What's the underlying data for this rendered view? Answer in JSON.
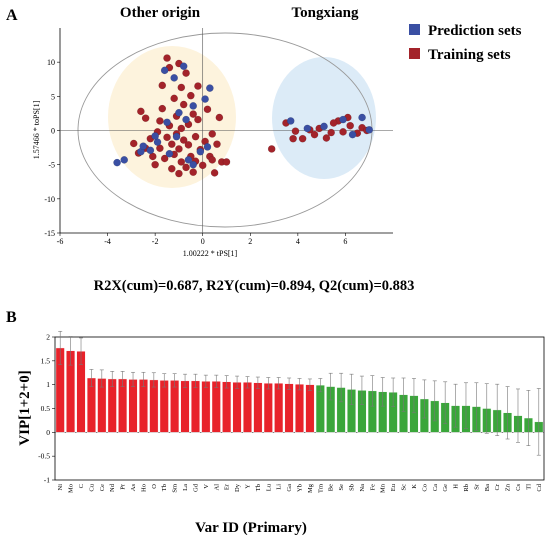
{
  "panels": {
    "a_letter": "A",
    "b_letter": "B"
  },
  "colors": {
    "prediction": "#3a4fa3",
    "training": "#a3232a",
    "vip_high": "#e8222a",
    "vip_low": "#3aa63a",
    "other_ellipse": "#fdf3dd",
    "tongxiang_ellipse": "#dcebf7"
  },
  "chart_data": [
    {
      "type": "scatter",
      "xlabel": "1.00222 * tPS[1]",
      "ylabel": "1.57466 * toPS[1]",
      "xlim": [
        -6,
        8
      ],
      "ylim": [
        -15,
        15
      ],
      "xticks": [
        -6,
        -4,
        -2,
        0,
        2,
        4,
        6
      ],
      "yticks": [
        -15,
        -10,
        -5,
        0,
        5,
        10
      ],
      "group_labels": [
        "Other origin",
        "Tongxiang"
      ],
      "stats": "R2X(cum)=0.687, R2Y(cum)=0.894, Q2(cum)=0.883",
      "legend_position": "top-right",
      "series": [
        {
          "name": "Prediction sets",
          "points": [
            [
              -3.6,
              -4.7
            ],
            [
              -3.3,
              -4.3
            ],
            [
              -2.6,
              -3.1
            ],
            [
              -2.5,
              -2.3
            ],
            [
              -2.2,
              -2.9
            ],
            [
              -1.9,
              -1.7
            ],
            [
              -1.4,
              -3.4
            ],
            [
              -1.1,
              -0.9
            ],
            [
              -0.7,
              1.6
            ],
            [
              -0.4,
              3.6
            ],
            [
              0.1,
              4.6
            ],
            [
              0.3,
              6.2
            ],
            [
              -1.2,
              7.7
            ],
            [
              -1.6,
              8.8
            ],
            [
              -0.8,
              9.4
            ],
            [
              -0.4,
              -5.0
            ],
            [
              -0.1,
              -3.1
            ],
            [
              0.2,
              -2.4
            ],
            [
              -0.6,
              -4.3
            ],
            [
              -1.0,
              2.6
            ],
            [
              3.7,
              1.4
            ],
            [
              4.4,
              0.3
            ],
            [
              5.1,
              0.6
            ],
            [
              5.9,
              1.6
            ],
            [
              6.3,
              -0.6
            ],
            [
              6.7,
              1.9
            ],
            [
              7.0,
              0.1
            ],
            [
              -2.0,
              -0.8
            ],
            [
              -1.5,
              1.2
            ]
          ]
        },
        {
          "name": "Training sets",
          "points": [
            [
              -2.9,
              -1.9
            ],
            [
              -2.7,
              -3.3
            ],
            [
              -2.4,
              -2.6
            ],
            [
              -2.2,
              -1.2
            ],
            [
              -2.1,
              -3.8
            ],
            [
              -2.0,
              -5.0
            ],
            [
              -1.9,
              -0.2
            ],
            [
              -1.8,
              1.4
            ],
            [
              -1.8,
              -2.6
            ],
            [
              -1.7,
              3.2
            ],
            [
              -1.7,
              6.6
            ],
            [
              -1.6,
              -4.1
            ],
            [
              -1.5,
              -1.0
            ],
            [
              -1.5,
              10.6
            ],
            [
              -1.4,
              9.2
            ],
            [
              -1.4,
              0.7
            ],
            [
              -1.3,
              -5.6
            ],
            [
              -1.3,
              -2.0
            ],
            [
              -1.2,
              4.7
            ],
            [
              -1.2,
              -3.5
            ],
            [
              -1.1,
              2.1
            ],
            [
              -1.1,
              -0.5
            ],
            [
              -1.0,
              -6.3
            ],
            [
              -1.0,
              -2.7
            ],
            [
              -0.9,
              6.3
            ],
            [
              -0.9,
              0.3
            ],
            [
              -0.9,
              -4.6
            ],
            [
              -0.8,
              3.8
            ],
            [
              -0.8,
              -1.4
            ],
            [
              -0.7,
              8.4
            ],
            [
              -0.7,
              -5.4
            ],
            [
              -0.6,
              -2.1
            ],
            [
              -0.6,
              0.9
            ],
            [
              -0.5,
              5.1
            ],
            [
              -0.5,
              -3.8
            ],
            [
              -0.4,
              2.4
            ],
            [
              -0.4,
              -6.1
            ],
            [
              -0.3,
              -0.9
            ],
            [
              -0.3,
              -4.5
            ],
            [
              -0.2,
              6.5
            ],
            [
              -0.2,
              1.6
            ],
            [
              -0.1,
              -2.8
            ],
            [
              0.0,
              -5.1
            ],
            [
              0.1,
              -1.6
            ],
            [
              0.2,
              3.1
            ],
            [
              0.3,
              -3.8
            ],
            [
              0.4,
              -0.5
            ],
            [
              0.5,
              -6.2
            ],
            [
              0.6,
              -2.0
            ],
            [
              0.7,
              1.9
            ],
            [
              0.8,
              -4.6
            ],
            [
              1.0,
              -4.6
            ],
            [
              0.4,
              -4.3
            ],
            [
              -1.0,
              9.8
            ],
            [
              -2.4,
              1.8
            ],
            [
              -2.6,
              2.8
            ],
            [
              2.9,
              -2.7
            ],
            [
              3.5,
              1.1
            ],
            [
              3.9,
              -0.1
            ],
            [
              4.2,
              -1.2
            ],
            [
              4.5,
              0.1
            ],
            [
              4.7,
              -0.6
            ],
            [
              4.9,
              0.3
            ],
            [
              5.2,
              -1.1
            ],
            [
              5.4,
              -0.3
            ],
            [
              5.7,
              1.4
            ],
            [
              5.9,
              -0.2
            ],
            [
              6.1,
              1.9
            ],
            [
              6.2,
              0.7
            ],
            [
              6.5,
              -0.4
            ],
            [
              6.7,
              0.4
            ],
            [
              6.9,
              0.0
            ],
            [
              3.8,
              -1.2
            ],
            [
              5.5,
              1.1
            ]
          ]
        }
      ]
    },
    {
      "type": "bar",
      "xlabel": "Var ID (Primary)",
      "ylabel": "VIP[1+2+0]",
      "ylim": [
        -1,
        2
      ],
      "yticks": [
        -1,
        -0.5,
        0,
        0.5,
        1,
        1.5,
        2
      ],
      "threshold": 1.0,
      "categories": [
        "Ni",
        "Mo",
        "C",
        "Cu",
        "Ce",
        "Nd",
        "Pr",
        "As",
        "Ho",
        "O",
        "Tb",
        "Sm",
        "La",
        "Gd",
        "V",
        "Al",
        "Er",
        "Dy",
        "Y",
        "Tb",
        "Lu",
        "Li",
        "Ga",
        "Yb",
        "Mg",
        "Tm",
        "Be",
        "Se",
        "Sb",
        "Na",
        "Fe",
        "Mn",
        "Eu",
        "Sc",
        "K",
        "Co",
        "Ca",
        "Ge",
        "H",
        "Rb",
        "Sr",
        "Ba",
        "Cr",
        "Zn",
        "Cs",
        "Tl",
        "Cd"
      ],
      "values": [
        1.77,
        1.71,
        1.7,
        1.14,
        1.13,
        1.12,
        1.12,
        1.11,
        1.11,
        1.1,
        1.09,
        1.09,
        1.08,
        1.08,
        1.07,
        1.07,
        1.06,
        1.05,
        1.05,
        1.04,
        1.03,
        1.03,
        1.02,
        1.01,
        1.0,
        0.99,
        0.96,
        0.94,
        0.9,
        0.88,
        0.87,
        0.85,
        0.84,
        0.79,
        0.77,
        0.7,
        0.66,
        0.62,
        0.56,
        0.56,
        0.54,
        0.5,
        0.47,
        0.41,
        0.35,
        0.3,
        0.22
      ],
      "errors": [
        0.35,
        0.3,
        0.28,
        0.18,
        0.18,
        0.16,
        0.16,
        0.15,
        0.15,
        0.15,
        0.14,
        0.14,
        0.14,
        0.14,
        0.13,
        0.13,
        0.13,
        0.13,
        0.12,
        0.12,
        0.12,
        0.12,
        0.12,
        0.12,
        0.12,
        0.14,
        0.28,
        0.3,
        0.32,
        0.3,
        0.32,
        0.3,
        0.3,
        0.35,
        0.36,
        0.4,
        0.42,
        0.44,
        0.45,
        0.48,
        0.5,
        0.52,
        0.54,
        0.55,
        0.56,
        0.58,
        0.7
      ]
    }
  ]
}
